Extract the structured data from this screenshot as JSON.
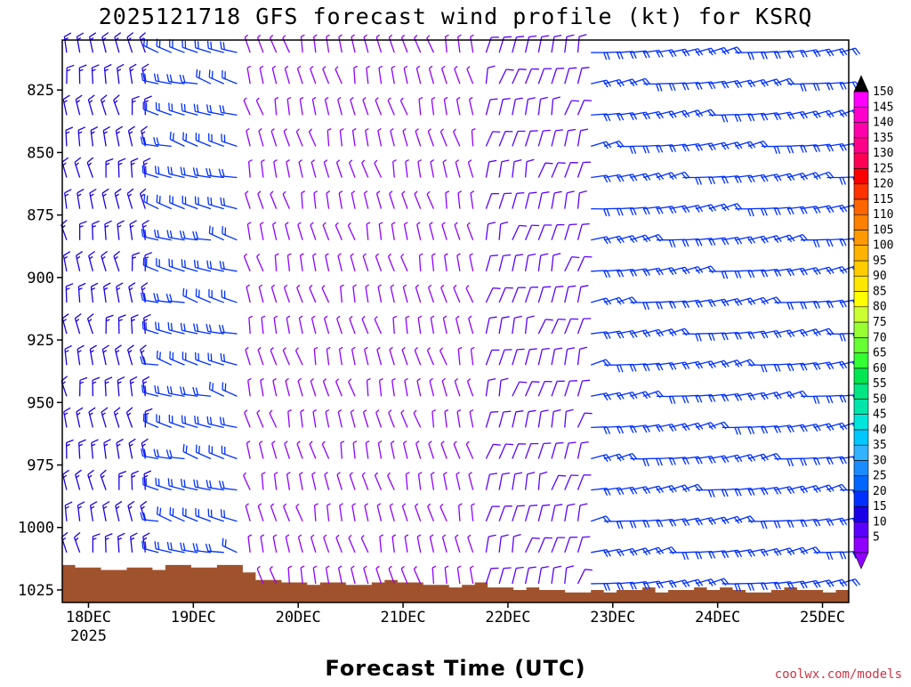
{
  "chart_data": {
    "type": "wind-barb-profile",
    "title": "2025121718 GFS forecast wind profile (kt) for KSRQ",
    "xlabel": "Forecast Time (UTC)",
    "ylabel": "",
    "credit": "coolwx.com/models",
    "y_axis": {
      "ticks": [
        825,
        850,
        875,
        900,
        925,
        950,
        975,
        1000,
        1025
      ],
      "range": [
        805,
        1030
      ]
    },
    "x_axis": {
      "ticks": [
        {
          "label": "18DEC",
          "sublabel": "2025",
          "hour": 6
        },
        {
          "label": "19DEC",
          "sublabel": "",
          "hour": 30
        },
        {
          "label": "20DEC",
          "sublabel": "",
          "hour": 54
        },
        {
          "label": "21DEC",
          "sublabel": "",
          "hour": 78
        },
        {
          "label": "22DEC",
          "sublabel": "",
          "hour": 102
        },
        {
          "label": "23DEC",
          "sublabel": "",
          "hour": 126
        },
        {
          "label": "24DEC",
          "sublabel": "",
          "hour": 150
        },
        {
          "label": "25DEC",
          "sublabel": "",
          "hour": 174
        }
      ],
      "range_hours": [
        0,
        180
      ]
    },
    "colorbar": {
      "values": [
        5,
        10,
        15,
        20,
        25,
        30,
        35,
        40,
        45,
        50,
        55,
        60,
        65,
        70,
        75,
        80,
        85,
        90,
        95,
        100,
        105,
        110,
        115,
        120,
        125,
        130,
        135,
        140,
        145,
        150
      ],
      "colors": [
        "#8f00ff",
        "#5a00ff",
        "#1a00e6",
        "#0030ff",
        "#0066ff",
        "#1a8cff",
        "#33b3ff",
        "#00c8ff",
        "#00e6dd",
        "#00e6aa",
        "#00e680",
        "#00e650",
        "#33ff33",
        "#66ff33",
        "#99ff33",
        "#ccff33",
        "#ffff00",
        "#ffe600",
        "#ffcc00",
        "#ffb300",
        "#ff9900",
        "#ff8000",
        "#ff6600",
        "#ff3300",
        "#ff0000",
        "#ff0055",
        "#ff0088",
        "#ff00aa",
        "#ff00cc",
        "#ff00ff"
      ]
    },
    "terrain": {
      "color": "#a0522d",
      "surface_pressure": [
        1015,
        1016,
        1016,
        1017,
        1017,
        1016,
        1016,
        1017,
        1015,
        1015,
        1016,
        1016,
        1015,
        1015,
        1018,
        1021,
        1021,
        1022,
        1022,
        1023,
        1022,
        1022,
        1023,
        1023,
        1022,
        1021,
        1022,
        1022,
        1023,
        1023,
        1024,
        1023,
        1022,
        1024,
        1024,
        1025,
        1024,
        1025,
        1025,
        1026,
        1026,
        1025,
        1026,
        1025,
        1025,
        1024,
        1026,
        1025,
        1025,
        1024,
        1025,
        1024,
        1025,
        1026,
        1026,
        1025,
        1024,
        1025,
        1025,
        1026,
        1025
      ]
    },
    "wind_sectors": [
      {
        "from_hour": 0,
        "to_hour": 20,
        "dir_deg": 350,
        "speed_kt": 15
      },
      {
        "from_hour": 20,
        "to_hour": 42,
        "dir_deg": 285,
        "speed_kt": 20
      },
      {
        "from_hour": 42,
        "to_hour": 96,
        "dir_deg": 345,
        "speed_kt": 5
      },
      {
        "from_hour": 96,
        "to_hour": 120,
        "dir_deg": 15,
        "speed_kt": 10
      },
      {
        "from_hour": 120,
        "to_hour": 180,
        "dir_deg": 80,
        "speed_kt": 20
      }
    ]
  }
}
